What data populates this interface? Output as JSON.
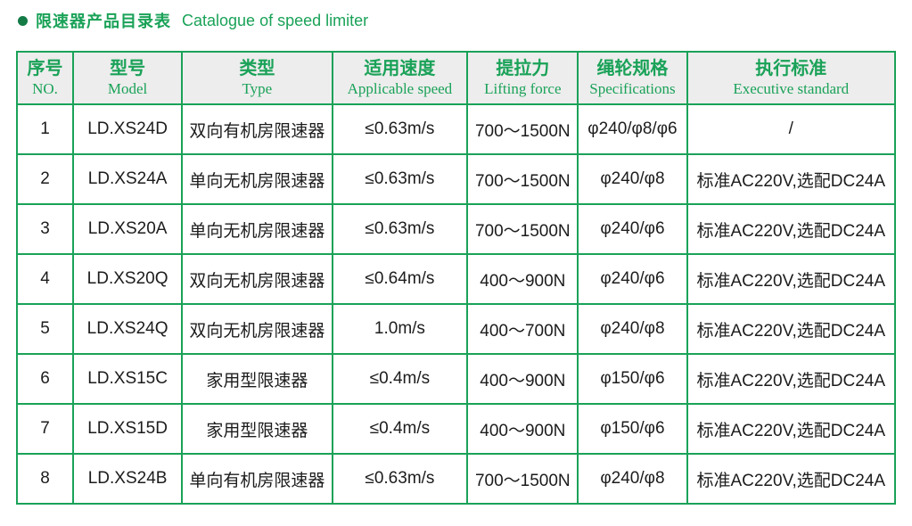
{
  "colors": {
    "accent_green": "#1aa258",
    "bullet_green": "#147a46",
    "header_bg": "#ededed",
    "body_text": "#1c1c1c"
  },
  "title": {
    "bullet_icon": "circle-bullet",
    "zh": "限速器产品目录表",
    "en": "Catalogue of speed limiter"
  },
  "table": {
    "columns": [
      {
        "zh": "序号",
        "en": "NO."
      },
      {
        "zh": "型号",
        "en": "Model"
      },
      {
        "zh": "类型",
        "en": "Type"
      },
      {
        "zh": "适用速度",
        "en": "Applicable speed"
      },
      {
        "zh": "提拉力",
        "en": "Lifting force"
      },
      {
        "zh": "绳轮规格",
        "en": "Specifications"
      },
      {
        "zh": "执行标准",
        "en": "Executive standard"
      }
    ],
    "rows": [
      [
        "1",
        "LD.XS24D",
        "双向有机房限速器",
        "≤0.63m/s",
        "700～1500N",
        "φ240/φ8/φ6",
        "/"
      ],
      [
        "2",
        "LD.XS24A",
        "单向无机房限速器",
        "≤0.63m/s",
        "700～1500N",
        "φ240/φ8",
        "标准AC220V,选配DC24A"
      ],
      [
        "3",
        "LD.XS20A",
        "单向无机房限速器",
        "≤0.63m/s",
        "700～1500N",
        "φ240/φ6",
        "标准AC220V,选配DC24A"
      ],
      [
        "4",
        "LD.XS20Q",
        "双向无机房限速器",
        "≤0.64m/s",
        "400～900N",
        "φ240/φ6",
        "标准AC220V,选配DC24A"
      ],
      [
        "5",
        "LD.XS24Q",
        "双向无机房限速器",
        "1.0m/s",
        "400～700N",
        "φ240/φ8",
        "标准AC220V,选配DC24A"
      ],
      [
        "6",
        "LD.XS15C",
        "家用型限速器",
        "≤0.4m/s",
        "400～900N",
        "φ150/φ6",
        "标准AC220V,选配DC24A"
      ],
      [
        "7",
        "LD.XS15D",
        "家用型限速器",
        "≤0.4m/s",
        "400～900N",
        "φ150/φ6",
        "标准AC220V,选配DC24A"
      ],
      [
        "8",
        "LD.XS24B",
        "单向有机房限速器",
        "≤0.63m/s",
        "700～1500N",
        "φ240/φ8",
        "标准AC220V,选配DC24A"
      ]
    ]
  }
}
